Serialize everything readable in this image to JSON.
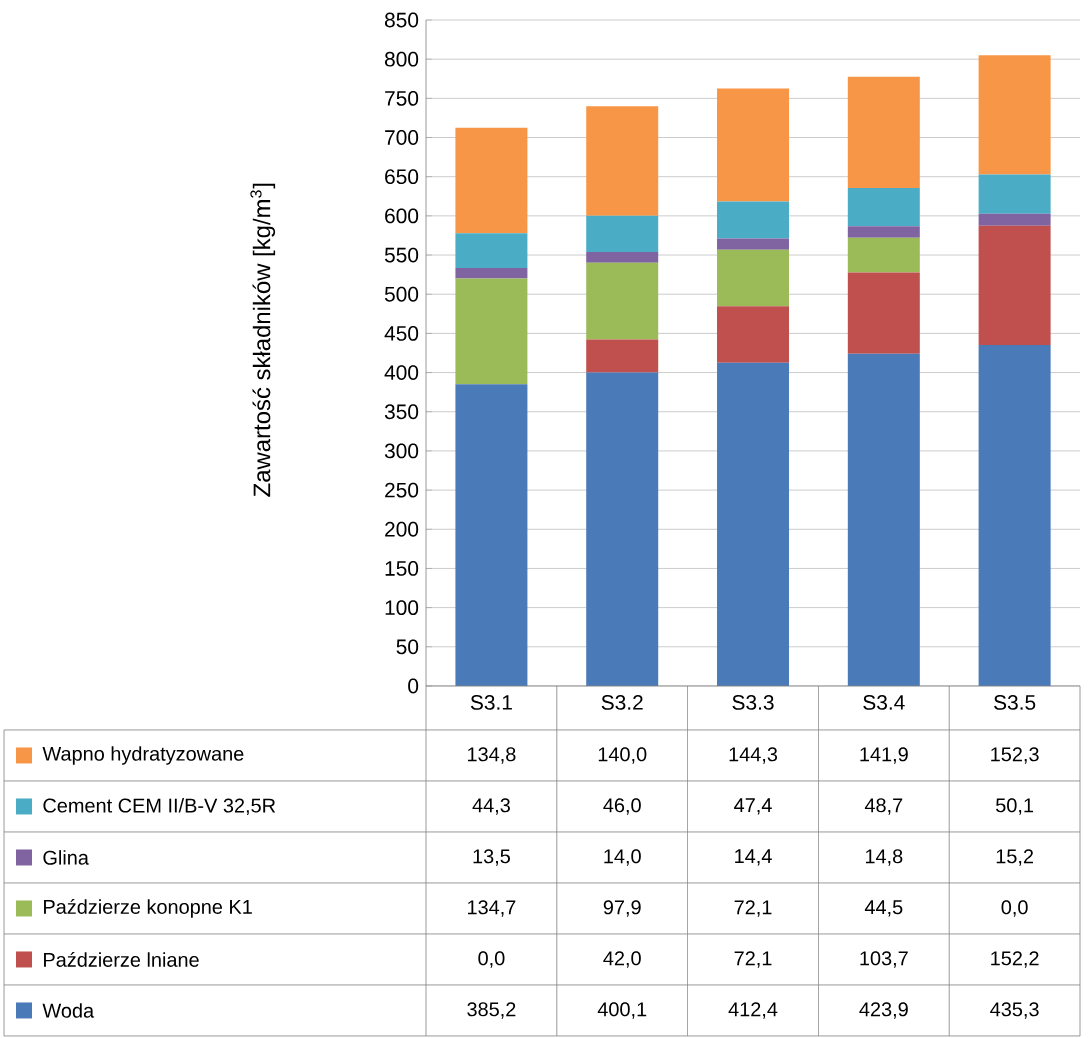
{
  "chart_data": {
    "type": "bar",
    "stacked": true,
    "ylabel": "Zawartość składników [kg/m$^{3}$]",
    "categories": [
      "S3.1",
      "S3.2",
      "S3.3",
      "S3.4",
      "S3.5"
    ],
    "series": [
      {
        "name": "Woda",
        "color": "#4a7ab8",
        "values": [
          385.2,
          400.1,
          412.4,
          423.9,
          435.3
        ],
        "value_labels": [
          "385,2",
          "400,1",
          "412,4",
          "423,9",
          "435,3"
        ]
      },
      {
        "name": "Paździerze lniane",
        "color": "#c0504d",
        "values": [
          0.0,
          42.0,
          72.1,
          103.7,
          152.2
        ],
        "value_labels": [
          "0,0",
          "42,0",
          "72,1",
          "103,7",
          "152,2"
        ]
      },
      {
        "name": "Paździerze konopne K1",
        "color": "#9bbb59",
        "values": [
          134.7,
          97.9,
          72.1,
          44.5,
          0.0
        ],
        "value_labels": [
          "134,7",
          "97,9",
          "72,1",
          "44,5",
          "0,0"
        ]
      },
      {
        "name": "Glina",
        "color": "#8064a2",
        "values": [
          13.5,
          14.0,
          14.4,
          14.8,
          15.2
        ],
        "value_labels": [
          "13,5",
          "14,0",
          "14,4",
          "14,8",
          "15,2"
        ]
      },
      {
        "name": "Cement CEM II/B-V 32,5R",
        "color": "#4bacc6",
        "values": [
          44.3,
          46.0,
          47.4,
          48.7,
          50.1
        ],
        "value_labels": [
          "44,3",
          "46,0",
          "47,4",
          "48,7",
          "50,1"
        ]
      },
      {
        "name": "Wapno hydratyzowane",
        "color": "#f79646",
        "values": [
          134.8,
          140.0,
          144.3,
          141.9,
          152.3
        ],
        "value_labels": [
          "134,8",
          "140,0",
          "144,3",
          "141,9",
          "152,3"
        ]
      }
    ],
    "ylim": [
      0,
      850
    ],
    "yticks": [
      0,
      50,
      100,
      150,
      200,
      250,
      300,
      350,
      400,
      450,
      500,
      550,
      600,
      650,
      700,
      750,
      800,
      850
    ],
    "grid": "y",
    "legend": "bottom"
  }
}
